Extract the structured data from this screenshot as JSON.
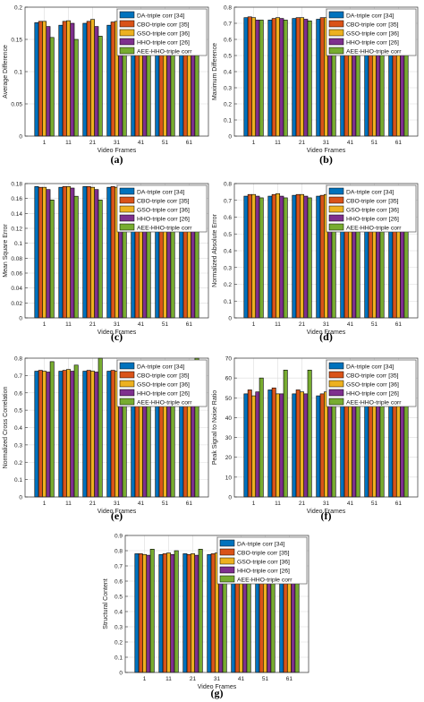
{
  "legend_entries": [
    "DA-triple corr [34]",
    "CBO-triple corr [35]",
    "GSO-triple corr [36]",
    "HHO-triple corr [26]",
    "AEE-HHO-triple corr"
  ],
  "series_colors": [
    "#0072BD",
    "#D95319",
    "#EDB120",
    "#7E2F8E",
    "#77AC30"
  ],
  "chart_data": [
    {
      "type": "bar",
      "panel_label": "(a)",
      "xlabel": "Video Frames",
      "ylabel": "Average Difference",
      "ylim": [
        0,
        0.2
      ],
      "yticks": [
        "0",
        "0.05",
        "0.1",
        "0.15",
        "0.2"
      ],
      "xticks": [
        "1",
        "11",
        "21",
        "31",
        "41",
        "51",
        "61"
      ],
      "grid": true,
      "legend_position": "top-right",
      "values": [
        [
          0.176,
          0.178,
          0.178,
          0.17,
          0.153
        ],
        [
          0.172,
          0.178,
          0.179,
          0.175,
          0.15
        ],
        [
          0.175,
          0.178,
          0.181,
          0.17,
          0.155
        ],
        [
          0.172,
          0.177,
          0.178,
          0.174,
          0.162
        ],
        [
          0.175,
          0.178,
          0.178,
          0.172,
          0.158
        ],
        [
          0.173,
          0.178,
          0.182,
          0.175,
          0.16
        ],
        [
          0.172,
          0.176,
          0.178,
          0.174,
          0.153
        ]
      ]
    },
    {
      "type": "bar",
      "panel_label": "(b)",
      "xlabel": "Video Frames",
      "ylabel": "Maximum Difference",
      "ylim": [
        0,
        0.8
      ],
      "yticks": [
        "0",
        "0.1",
        "0.2",
        "0.3",
        "0.4",
        "0.5",
        "0.6",
        "0.7",
        "0.8"
      ],
      "xticks": [
        "1",
        "11",
        "21",
        "31",
        "41",
        "51",
        "61"
      ],
      "grid": true,
      "legend_position": "top-right",
      "values": [
        [
          0.735,
          0.74,
          0.735,
          0.72,
          0.72
        ],
        [
          0.72,
          0.73,
          0.735,
          0.73,
          0.72
        ],
        [
          0.73,
          0.735,
          0.735,
          0.725,
          0.715
        ],
        [
          0.725,
          0.735,
          0.735,
          0.725,
          0.72
        ],
        [
          0.73,
          0.735,
          0.735,
          0.725,
          0.715
        ],
        [
          0.725,
          0.735,
          0.74,
          0.73,
          0.72
        ],
        [
          0.73,
          0.74,
          0.735,
          0.73,
          0.72
        ]
      ]
    },
    {
      "type": "bar",
      "panel_label": "(c)",
      "xlabel": "Video Frames",
      "ylabel": "Mean Square Error",
      "ylim": [
        0,
        0.18
      ],
      "yticks": [
        "0",
        "0.02",
        "0.04",
        "0.06",
        "0.08",
        "0.1",
        "0.12",
        "0.14",
        "0.16",
        "0.18"
      ],
      "xticks": [
        "1",
        "11",
        "21",
        "31",
        "41",
        "51",
        "61"
      ],
      "grid": true,
      "legend_position": "top-right",
      "values": [
        [
          0.176,
          0.175,
          0.175,
          0.172,
          0.158
        ],
        [
          0.175,
          0.176,
          0.176,
          0.174,
          0.163
        ],
        [
          0.176,
          0.176,
          0.175,
          0.172,
          0.158
        ],
        [
          0.175,
          0.176,
          0.175,
          0.173,
          0.155
        ],
        [
          0.176,
          0.175,
          0.176,
          0.172,
          0.165
        ],
        [
          0.175,
          0.176,
          0.175,
          0.173,
          0.16
        ],
        [
          0.176,
          0.175,
          0.175,
          0.172,
          0.162
        ]
      ]
    },
    {
      "type": "bar",
      "panel_label": "(d)",
      "xlabel": "Video Frames",
      "ylabel": "Normalized Absolute Error",
      "ylim": [
        0,
        0.8
      ],
      "yticks": [
        "0",
        "0.1",
        "0.2",
        "0.3",
        "0.4",
        "0.5",
        "0.6",
        "0.7",
        "0.8"
      ],
      "xticks": [
        "1",
        "11",
        "21",
        "31",
        "41",
        "51",
        "61"
      ],
      "grid": true,
      "legend_position": "top-right",
      "values": [
        [
          0.725,
          0.735,
          0.735,
          0.725,
          0.715
        ],
        [
          0.725,
          0.735,
          0.74,
          0.725,
          0.715
        ],
        [
          0.73,
          0.735,
          0.735,
          0.725,
          0.715
        ],
        [
          0.725,
          0.73,
          0.735,
          0.725,
          0.72
        ],
        [
          0.73,
          0.735,
          0.74,
          0.725,
          0.715
        ],
        [
          0.725,
          0.735,
          0.735,
          0.725,
          0.715
        ],
        [
          0.73,
          0.735,
          0.735,
          0.725,
          0.715
        ]
      ]
    },
    {
      "type": "bar",
      "panel_label": "(e)",
      "xlabel": "Video Frames",
      "ylabel": "Normalized Cross Correlation",
      "ylim": [
        0,
        0.8
      ],
      "yticks": [
        "0",
        "0.1",
        "0.2",
        "0.3",
        "0.4",
        "0.5",
        "0.6",
        "0.7",
        "0.8"
      ],
      "xticks": [
        "1",
        "11",
        "21",
        "31",
        "41",
        "51",
        "61"
      ],
      "grid": true,
      "legend_position": "top-right",
      "values": [
        [
          0.725,
          0.73,
          0.725,
          0.72,
          0.78
        ],
        [
          0.725,
          0.73,
          0.735,
          0.725,
          0.76
        ],
        [
          0.725,
          0.73,
          0.725,
          0.72,
          0.8
        ],
        [
          0.725,
          0.73,
          0.725,
          0.72,
          0.77
        ],
        [
          0.725,
          0.73,
          0.725,
          0.72,
          0.775
        ],
        [
          0.725,
          0.73,
          0.725,
          0.72,
          0.775
        ],
        [
          0.725,
          0.73,
          0.73,
          0.725,
          0.8
        ]
      ]
    },
    {
      "type": "bar",
      "panel_label": "(f)",
      "xlabel": "Video Frames",
      "ylabel": "Peak Signal to Noise Ratio",
      "ylim": [
        0,
        70
      ],
      "yticks": [
        "0",
        "10",
        "20",
        "30",
        "40",
        "50",
        "60",
        "70"
      ],
      "xticks": [
        "1",
        "11",
        "21",
        "31",
        "41",
        "51",
        "61"
      ],
      "grid": true,
      "legend_position": "top-right",
      "values": [
        [
          52,
          54,
          51,
          53,
          60
        ],
        [
          54,
          55,
          52,
          52,
          64
        ],
        [
          52,
          54,
          53,
          52,
          64
        ],
        [
          51,
          52,
          53,
          51,
          64
        ],
        [
          53,
          54,
          52,
          51,
          63
        ],
        [
          52,
          55,
          53,
          52,
          63
        ],
        [
          52,
          53,
          51,
          51,
          59
        ]
      ]
    },
    {
      "type": "bar",
      "panel_label": "(g)",
      "xlabel": "Video Frames",
      "ylabel": "Structural Content",
      "ylim": [
        0,
        0.9
      ],
      "yticks": [
        "0",
        "0.1",
        "0.2",
        "0.3",
        "0.4",
        "0.5",
        "0.6",
        "0.7",
        "0.8",
        "0.9"
      ],
      "xticks": [
        "1",
        "11",
        "21",
        "31",
        "41",
        "51",
        "61"
      ],
      "grid": true,
      "legend_position": "top-right",
      "values": [
        [
          0.78,
          0.78,
          0.775,
          0.77,
          0.81
        ],
        [
          0.775,
          0.78,
          0.785,
          0.775,
          0.8
        ],
        [
          0.78,
          0.775,
          0.78,
          0.77,
          0.81
        ],
        [
          0.775,
          0.78,
          0.785,
          0.775,
          0.795
        ],
        [
          0.78,
          0.775,
          0.78,
          0.77,
          0.805
        ],
        [
          0.775,
          0.78,
          0.785,
          0.77,
          0.8
        ],
        [
          0.78,
          0.775,
          0.78,
          0.77,
          0.81
        ]
      ]
    }
  ]
}
